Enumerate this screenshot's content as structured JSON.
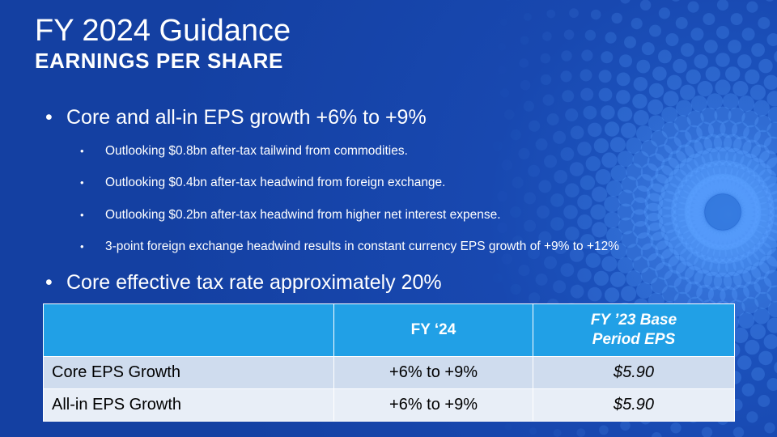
{
  "slide": {
    "title": "FY 2024 Guidance",
    "subtitle": "EARNINGS PER SHARE",
    "bullets": [
      {
        "text": "Core and all-in EPS growth +6% to +9%",
        "sub": [
          "Outlooking $0.8bn after-tax tailwind  from commodities.",
          "Outlooking $0.4bn after-tax headwind from foreign exchange.",
          "Outlooking $0.2bn after-tax headwind from higher net interest expense.",
          "3-point foreign exchange headwind results in constant currency EPS growth of +9% to +12%"
        ]
      },
      {
        "text": "Core effective tax rate approximately 20%"
      }
    ],
    "bullet_glyph": "•",
    "table": {
      "headers": [
        "",
        "FY ‘24",
        "FY ’23 Base Period EPS"
      ],
      "rows": [
        [
          "Core EPS Growth",
          "+6% to +9%",
          "$5.90"
        ],
        [
          "All-in EPS Growth",
          "+6% to +9%",
          "$5.90"
        ]
      ]
    }
  },
  "colors": {
    "background": "#1743a8",
    "header_fill": "#21a0e6",
    "row1_fill": "#cfdcee",
    "row2_fill": "#e8eef7",
    "text_light": "#ffffff"
  }
}
